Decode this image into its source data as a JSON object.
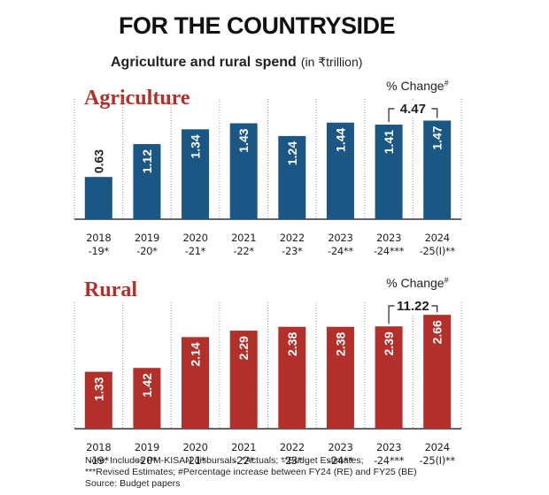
{
  "title": "FOR THE COUNTRYSIDE",
  "subtitle": "Agriculture and rural spend",
  "subtitle_unit": "(in ₹trillion)",
  "chart_data": [
    {
      "type": "bar",
      "title": "Agriculture",
      "color": "#1b5784",
      "categories": [
        "2018\n-19*",
        "2019\n-20*",
        "2020\n-21*",
        "2021\n-22*",
        "2022\n-23*",
        "2023\n-24**",
        "2023\n-24***",
        "2024\n-25(I)**"
      ],
      "values": [
        0.63,
        1.12,
        1.34,
        1.43,
        1.24,
        1.44,
        1.41,
        1.47
      ],
      "ylim": [
        0,
        1.95
      ],
      "change_label": "% Change",
      "change_mark": "#",
      "change": 4.47
    },
    {
      "type": "bar",
      "title": "Rural",
      "color": "#b3302a",
      "categories": [
        "2018\n-19*",
        "2019\n-20*",
        "2020\n-21*",
        "2021\n-22*",
        "2022\n-23*",
        "2023\n-24**",
        "2023\n-24***",
        "2024\n-25(I)**"
      ],
      "values": [
        1.33,
        1.42,
        2.14,
        2.29,
        2.38,
        2.38,
        2.39,
        2.66
      ],
      "ylim": [
        0,
        3.2
      ],
      "change_label": "% Change",
      "change_mark": "#",
      "change": 11.22
    }
  ],
  "notes": [
    "Note: Includes PM-KISAN disbursals; *Actuals; **Budget Estimates;",
    "***Revised Estimates; #Percentage increase between FY24 (RE) and FY25 (BE)",
    "Source: Budget papers"
  ]
}
